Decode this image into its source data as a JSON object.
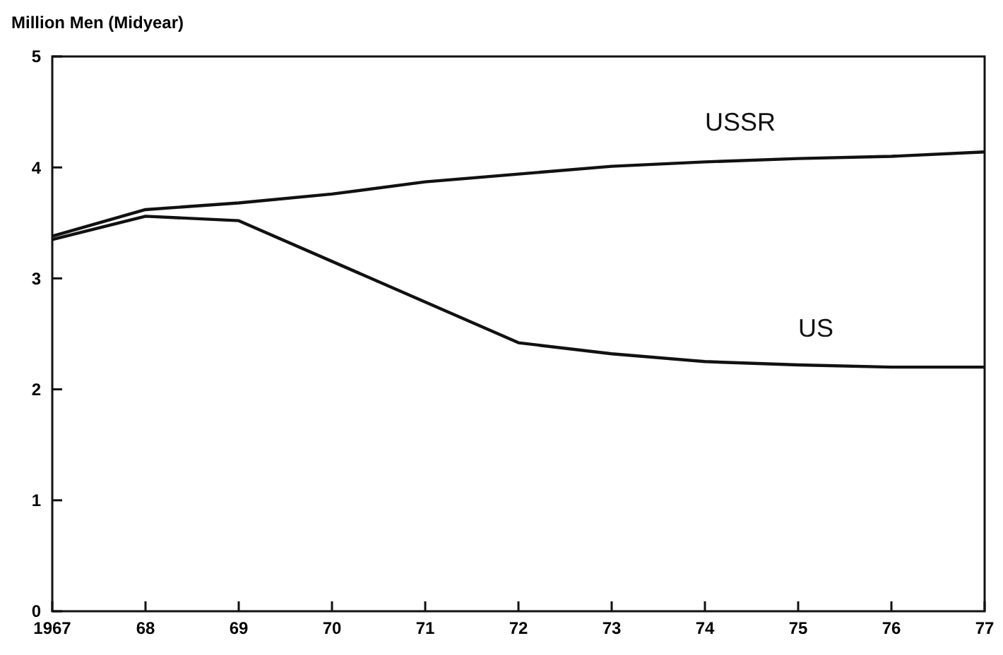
{
  "chart_data": {
    "type": "line",
    "ylabel": "Million Men (Midyear)",
    "x": [
      1967,
      1968,
      1969,
      1970,
      1971,
      1972,
      1973,
      1974,
      1975,
      1976,
      1977
    ],
    "series": [
      {
        "name": "USSR",
        "color": "#111111",
        "values": [
          3.38,
          3.62,
          3.68,
          3.76,
          3.87,
          3.94,
          4.01,
          4.05,
          4.08,
          4.1,
          4.14
        ]
      },
      {
        "name": "US",
        "color": "#111111",
        "values": [
          3.35,
          3.56,
          3.52,
          null,
          null,
          2.42,
          2.32,
          2.25,
          2.22,
          2.2,
          2.2
        ]
      }
    ],
    "xlim": [
      1967,
      1977
    ],
    "xticks": [
      1967,
      {
        "value": 1968,
        "label": "68"
      },
      {
        "value": 1969,
        "label": "69"
      },
      {
        "value": 1970,
        "label": "70"
      },
      {
        "value": 1971,
        "label": "71"
      },
      {
        "value": 1972,
        "label": "72"
      },
      {
        "value": 1973,
        "label": "73"
      },
      {
        "value": 1974,
        "label": "74"
      },
      {
        "value": 1975,
        "label": "75"
      },
      {
        "value": 1976,
        "label": "76"
      },
      {
        "value": 1977,
        "label": "77"
      }
    ],
    "ylim": [
      0,
      5
    ],
    "yticks": [
      0,
      1,
      2,
      3,
      4,
      5
    ],
    "grid": false,
    "legend": false,
    "marker": "none",
    "line_style": "solid"
  }
}
